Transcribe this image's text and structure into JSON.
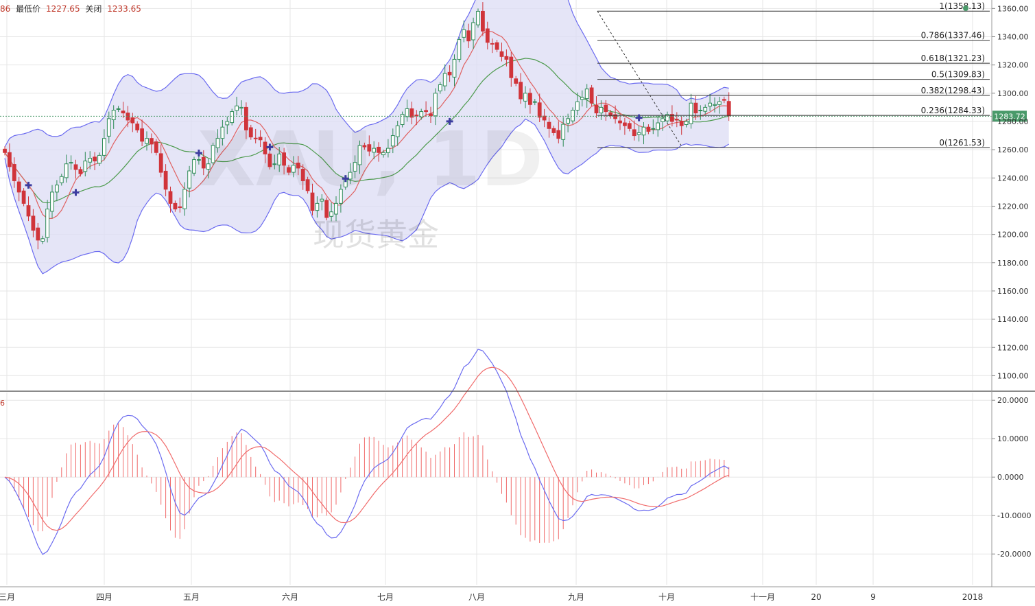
{
  "info_bar": {
    "open_fragment": "86",
    "low_label": "最低价",
    "low_value": "1227.65",
    "close_label": "关闭",
    "close_value": "1233.65"
  },
  "macd_label": "6",
  "watermark": {
    "symbol": "XAU, 1D",
    "name": "现货黄金"
  },
  "colors": {
    "up": "#2e8b57",
    "down": "#d0343a",
    "bb_line": "#6b6bf0",
    "bb_fill": "#dcdcf4",
    "ma_fast": "#e06060",
    "ma_slow": "#4c9a4c",
    "macd": "#6b6bf0",
    "signal": "#f06a6a",
    "hist": "#f06a6a",
    "grid": "#e6e6e6",
    "price_tag": "#4a9a6a",
    "marker": "#3c3ca0"
  },
  "chart_data": {
    "type": "candlestick",
    "instrument": "XAU",
    "timeframe": "1D",
    "current_price": 1283.72,
    "price_axis": {
      "range": [
        1090,
        1366
      ],
      "ticks": [
        "1360.00",
        "1340.00",
        "1320.00",
        "1300.00",
        "1280.00",
        "1260.00",
        "1240.00",
        "1220.00",
        "1200.00",
        "1180.00",
        "1160.00",
        "1140.00",
        "1120.00",
        "1100.00"
      ]
    },
    "macd_axis": {
      "range": [
        -28,
        22
      ],
      "ticks": [
        "20.0000",
        "10.0000",
        "0.0000",
        "-10.0000",
        "-20.0000"
      ]
    },
    "x_labels": [
      "三月",
      "四月",
      "五月",
      "六月",
      "七月",
      "八月",
      "九月",
      "十月",
      "十一月",
      "20",
      "9",
      "2018"
    ],
    "fibonacci": [
      {
        "label": "1(1358.13)",
        "price": 1358.13
      },
      {
        "label": "0.786(1337.46)",
        "price": 1337.46
      },
      {
        "label": "0.618(1321.23)",
        "price": 1321.23
      },
      {
        "label": "0.5(1309.83)",
        "price": 1309.83
      },
      {
        "label": "0.382(1298.43)",
        "price": 1298.43
      },
      {
        "label": "0.236(1284.33)",
        "price": 1284.33
      },
      {
        "label": "0(1261.53)",
        "price": 1261.53
      }
    ],
    "series": [
      {
        "name": "close",
        "values": [
          1258,
          1248,
          1238,
          1230,
          1222,
          1213,
          1203,
          1196,
          1197,
          1218,
          1230,
          1235,
          1241,
          1250,
          1251,
          1246,
          1243,
          1252,
          1254,
          1252,
          1256,
          1268,
          1282,
          1288,
          1289,
          1286,
          1281,
          1279,
          1274,
          1266,
          1268,
          1264,
          1258,
          1244,
          1232,
          1222,
          1218,
          1219,
          1232,
          1245,
          1253,
          1253,
          1247,
          1250,
          1263,
          1268,
          1276,
          1280,
          1287,
          1291,
          1290,
          1274,
          1269,
          1268,
          1267,
          1257,
          1248,
          1250,
          1257,
          1249,
          1244,
          1249,
          1247,
          1238,
          1231,
          1217,
          1222,
          1225,
          1212,
          1216,
          1222,
          1232,
          1240,
          1244,
          1251,
          1263,
          1262,
          1259,
          1261,
          1258,
          1258,
          1261,
          1270,
          1277,
          1285,
          1289,
          1283,
          1284,
          1287,
          1287,
          1284,
          1300,
          1306,
          1314,
          1313,
          1324,
          1338,
          1345,
          1337,
          1350,
          1358,
          1344,
          1336,
          1335,
          1331,
          1326,
          1324,
          1311,
          1307,
          1296,
          1300,
          1292,
          1294,
          1283,
          1281,
          1275,
          1272,
          1268,
          1278,
          1282,
          1288,
          1294,
          1297,
          1303,
          1293,
          1286,
          1290,
          1287,
          1284,
          1282,
          1279,
          1277,
          1275,
          1270,
          1272,
          1276,
          1273,
          1275,
          1279,
          1282,
          1285,
          1280,
          1281,
          1277,
          1280,
          1293,
          1286,
          1288,
          1290,
          1293,
          1292,
          1294,
          1295,
          1284
        ]
      },
      {
        "name": "BB upper",
        "values": []
      },
      {
        "name": "BB lower",
        "values": []
      },
      {
        "name": "MACD",
        "values": []
      },
      {
        "name": "signal",
        "values": []
      }
    ],
    "grid": true
  }
}
